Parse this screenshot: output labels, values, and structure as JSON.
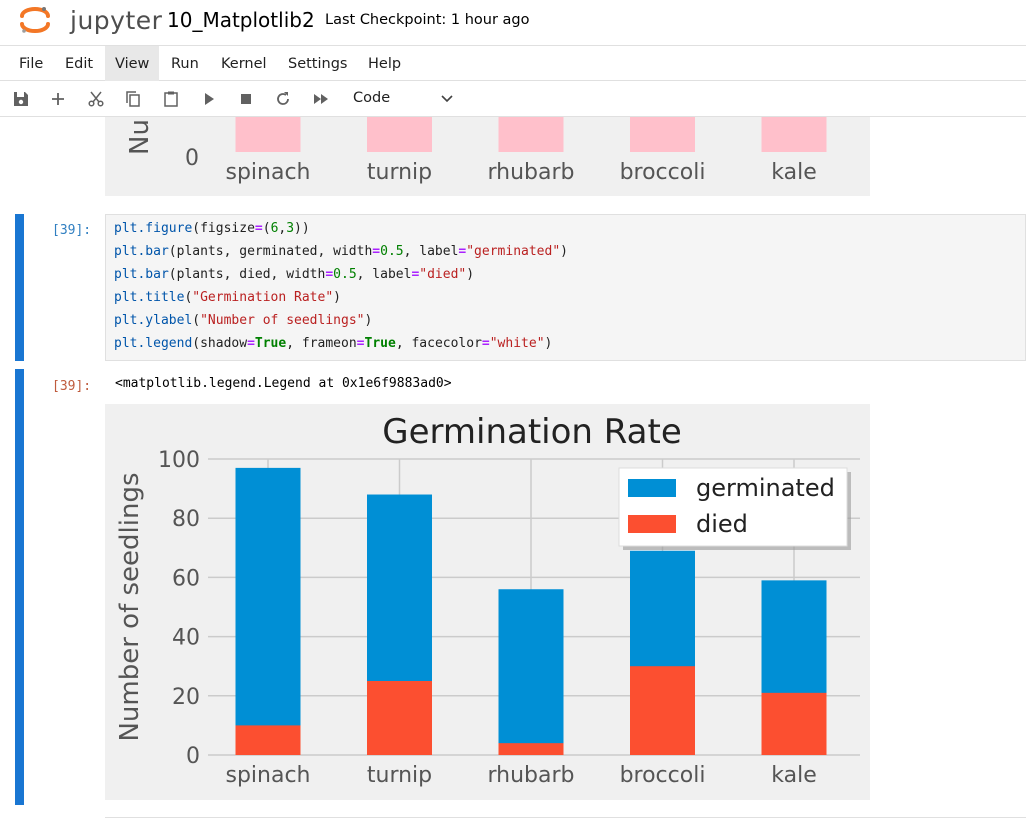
{
  "header": {
    "logo_text": "jupyter",
    "notebook_title": "10_Matplotlib2",
    "checkpoint": "Last Checkpoint: 1 hour ago"
  },
  "menu": [
    "File",
    "Edit",
    "View",
    "Run",
    "Kernel",
    "Settings",
    "Help"
  ],
  "menu_active": "View",
  "toolbar": {
    "buttons": [
      "save-icon",
      "add-cell-icon",
      "cut-icon",
      "copy-icon",
      "paste-icon",
      "run-icon",
      "stop-icon",
      "restart-icon",
      "run-all-icon"
    ],
    "cell_type": "Code"
  },
  "cells": {
    "input_prompt": "[39]:",
    "output_prompt": "[39]:",
    "code_lines": [
      "plt.figure(figsize=(6,3))",
      "plt.bar(plants, germinated, width=0.5, label=\"germinated\")",
      "plt.bar(plants, died, width=0.5, label=\"died\")",
      "plt.title(\"Germination Rate\")",
      "plt.ylabel(\"Number of seedlings\")",
      "plt.legend(shadow=True, frameon=True, facecolor=\"white\")"
    ],
    "output_text": "<matplotlib.legend.Legend at 0x1e6f9883ad0>"
  },
  "prev_chart": {
    "categories": [
      "spinach",
      "turnip",
      "rhubarb",
      "broccoli",
      "kale"
    ],
    "ytick_visible": "0",
    "ylabel_fragment": "Nu",
    "bar_color": "#ffc0cb"
  },
  "chart_data": {
    "type": "bar",
    "title": "Germination Rate",
    "ylabel": "Number of seedlings",
    "xlabel": "",
    "categories": [
      "spinach",
      "turnip",
      "rhubarb",
      "broccoli",
      "kale"
    ],
    "series": [
      {
        "name": "germinated",
        "values": [
          97,
          88,
          56,
          69,
          59
        ],
        "color": "#008fd5"
      },
      {
        "name": "died",
        "values": [
          10,
          25,
          4,
          30,
          21
        ],
        "color": "#fc4f30"
      }
    ],
    "ylim": [
      0,
      100
    ],
    "yticks": [
      0,
      20,
      40,
      60,
      80,
      100
    ],
    "grid": true,
    "legend_position": "upper right",
    "background": "#f0f0f0"
  }
}
